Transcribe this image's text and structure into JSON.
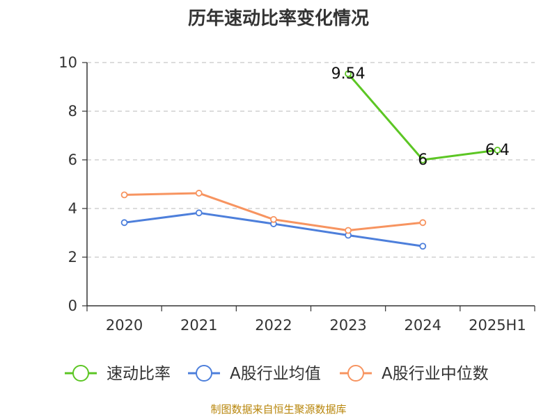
{
  "chart_data": {
    "type": "line",
    "title": "历年速动比率变化情况",
    "categories": [
      "2020",
      "2021",
      "2022",
      "2023",
      "2024",
      "2025H1"
    ],
    "yticks": [
      "0",
      "2",
      "4",
      "6",
      "8",
      "10"
    ],
    "ylim": [
      0,
      10
    ],
    "grid": true,
    "legend_position": "bottom",
    "series": [
      {
        "name": "速动比率",
        "color": "#5cc624",
        "values": [
          null,
          null,
          null,
          9.54,
          6,
          6.4
        ],
        "labels": [
          "",
          "",
          "",
          "9.54",
          "6",
          "6.4"
        ]
      },
      {
        "name": "A股行业均值",
        "color": "#4d7fdb",
        "values": [
          3.42,
          3.82,
          3.37,
          2.9,
          2.45,
          null
        ],
        "labels": [
          "",
          "",
          "",
          "",
          "",
          ""
        ]
      },
      {
        "name": "A股行业中位数",
        "color": "#f79460",
        "values": [
          4.56,
          4.63,
          3.55,
          3.1,
          3.42,
          null
        ],
        "labels": [
          "",
          "",
          "",
          "",
          "",
          ""
        ]
      }
    ]
  },
  "footer": {
    "source": "制图数据来自恒生聚源数据库"
  }
}
